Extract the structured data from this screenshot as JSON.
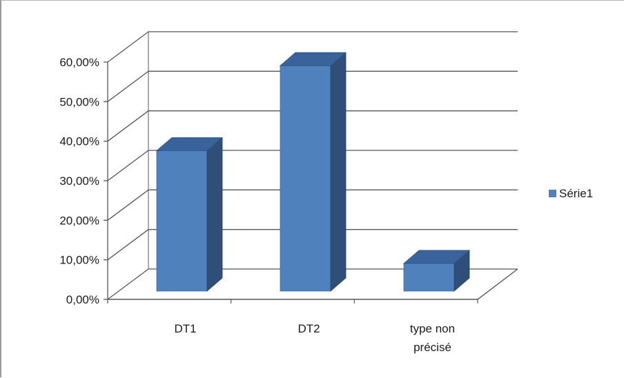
{
  "chart_data": {
    "type": "bar",
    "style": "3d-clustered-column",
    "title": "",
    "xlabel": "",
    "ylabel": "",
    "categories": [
      "DT1",
      "DT2",
      "type non précisé"
    ],
    "series": [
      {
        "name": "Série1",
        "values": [
          0.355,
          0.57,
          0.07
        ],
        "color": "#4f81bd"
      }
    ],
    "ylim": [
      0,
      0.6
    ],
    "yticks": [
      0,
      0.1,
      0.2,
      0.3,
      0.4,
      0.5,
      0.6
    ],
    "ytick_labels": [
      "0,00%",
      "10,00%",
      "20,00%",
      "30,00%",
      "40,00%",
      "50,00%",
      "60,00%"
    ],
    "grid": true,
    "legend": {
      "position": "right",
      "entries": [
        "Série1"
      ]
    }
  }
}
